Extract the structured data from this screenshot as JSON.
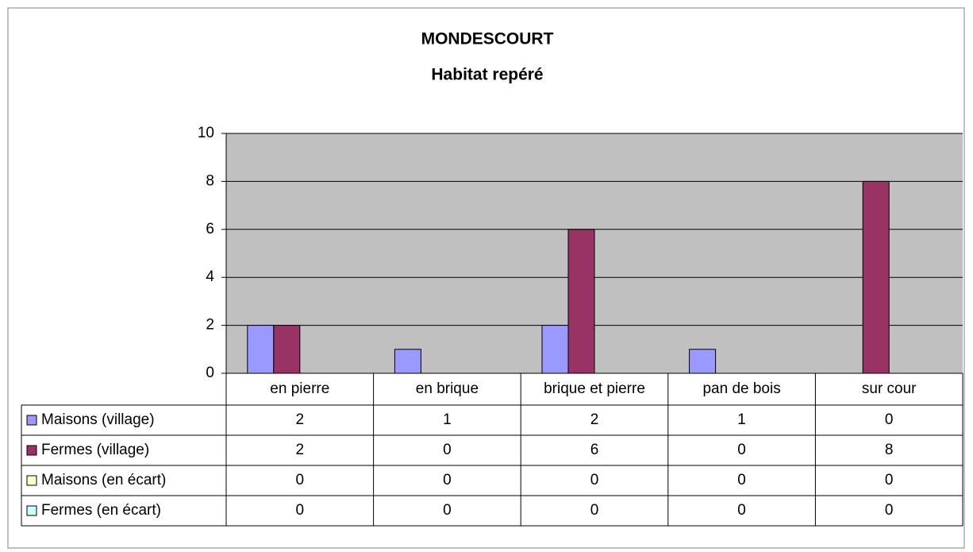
{
  "chart_data": {
    "type": "bar",
    "title": "MONDESCOURT",
    "subtitle": "Habitat repéré",
    "categories": [
      "en pierre",
      "en brique",
      "brique et pierre",
      "pan de bois",
      "sur cour"
    ],
    "series": [
      {
        "name": "Maisons (village)",
        "color": "#9999ff",
        "values": [
          2,
          1,
          2,
          1,
          0
        ]
      },
      {
        "name": "Fermes (village)",
        "color": "#993366",
        "values": [
          2,
          0,
          6,
          0,
          8
        ]
      },
      {
        "name": "Maisons (en écart)",
        "color": "#ffffcc",
        "values": [
          0,
          0,
          0,
          0,
          0
        ]
      },
      {
        "name": "Fermes (en écart)",
        "color": "#ccffff",
        "values": [
          0,
          0,
          0,
          0,
          0
        ]
      }
    ],
    "ylim": [
      0,
      10
    ],
    "yticks": [
      0,
      2,
      4,
      6,
      8,
      10
    ],
    "grid": true,
    "data_table": true
  }
}
